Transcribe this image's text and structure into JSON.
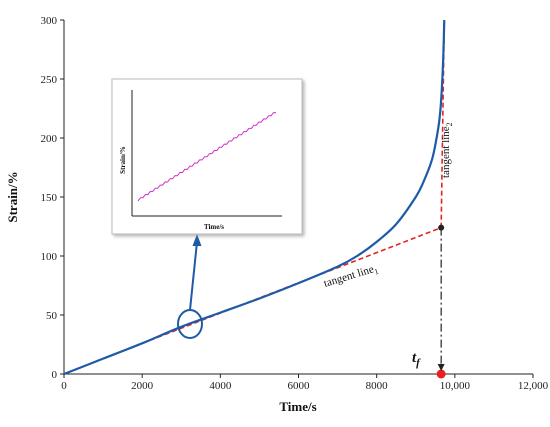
{
  "chart_data": {
    "type": "line",
    "title": "",
    "xlabel": "Time/s",
    "ylabel": "Strain/%",
    "xlim": [
      0,
      12000
    ],
    "ylim": [
      0,
      300
    ],
    "xticks": [
      0,
      2000,
      4000,
      6000,
      8000,
      10000,
      12000
    ],
    "xtick_labels": [
      "0",
      "2000",
      "4000",
      "6000",
      "8000",
      "10,000",
      "12,000"
    ],
    "yticks": [
      0,
      50,
      100,
      150,
      200,
      250,
      300
    ],
    "ytick_labels": [
      "0",
      "50",
      "100",
      "150",
      "200",
      "250",
      "300"
    ],
    "grid": false,
    "colors": {
      "curve": "#1f5aa6",
      "tangent": "#e8231f",
      "marker_tf": "#e8231f",
      "marker_intersect": "#222222",
      "inset_curve": "#cc33cc"
    },
    "series": [
      {
        "x": [
          0,
          1000,
          2000,
          3000,
          4000,
          5000,
          6000,
          7000,
          7500,
          8000,
          8500,
          9000,
          9200,
          9400,
          9500,
          9600,
          9650,
          9700,
          9730
        ],
        "y": [
          0,
          13,
          26,
          40,
          52,
          64,
          77,
          91,
          100,
          112,
          127,
          150,
          163,
          180,
          194,
          214,
          232,
          265,
          300
        ]
      }
    ],
    "tangent_lines": [
      {
        "label_base": "tangent line",
        "label_sub": "1",
        "x": [
          2000,
          9650
        ],
        "y": [
          26,
          124
        ]
      },
      {
        "label_base": "tangent line",
        "label_sub": "2",
        "x": [
          9650,
          9730
        ],
        "y": [
          124,
          300
        ]
      }
    ],
    "failure_time": {
      "label": "t",
      "label_sub": "f",
      "x": 9650
    },
    "inset": {
      "xlabel": "Time/s",
      "ylabel": "Strain/%",
      "series": {
        "x": [
          0,
          1
        ],
        "y": [
          0.12,
          0.82
        ],
        "oscillation": "sawtooth"
      }
    }
  }
}
